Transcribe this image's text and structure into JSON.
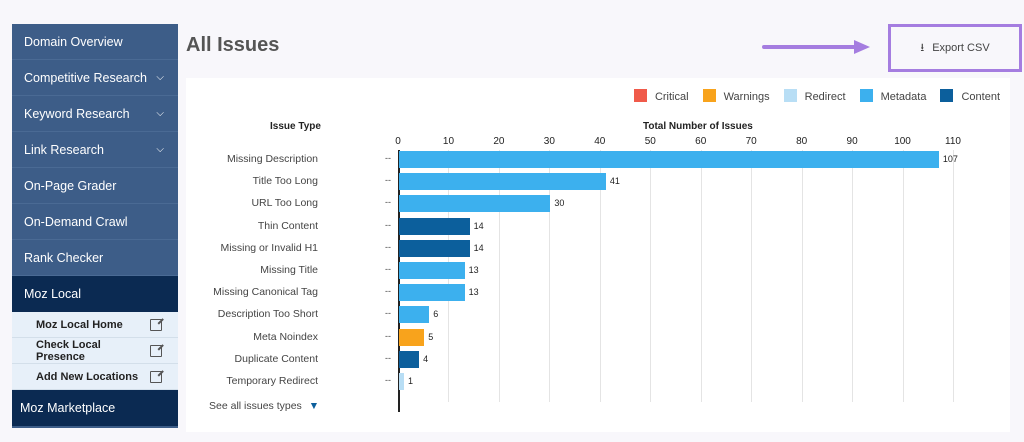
{
  "sidebar": {
    "items": [
      {
        "label": "Domain Overview",
        "chevron": false
      },
      {
        "label": "Competitive Research",
        "chevron": true
      },
      {
        "label": "Keyword Research",
        "chevron": true
      },
      {
        "label": "Link Research",
        "chevron": true
      },
      {
        "label": "On-Page Grader",
        "chevron": false
      },
      {
        "label": "On-Demand Crawl",
        "chevron": false
      },
      {
        "label": "Rank Checker",
        "chevron": false
      },
      {
        "label": "Moz Local",
        "chevron": false,
        "active": true
      }
    ],
    "subitems": [
      "Moz Local Home",
      "Check Local Presence",
      "Add New Locations"
    ],
    "marketplace": "Moz Marketplace"
  },
  "page": {
    "title": "All Issues",
    "export_label": "Export CSV",
    "see_all": "See all issues types"
  },
  "colors": {
    "Critical": "#f05a4a",
    "Warnings": "#f8a31c",
    "Redirect": "#b8def5",
    "Metadata": "#3cb0ee",
    "Content": "#0c5f9c",
    "highlight": "#a57de0"
  },
  "chart_data": {
    "type": "bar",
    "orientation": "horizontal",
    "category_header": "Issue Type",
    "xlabel": "Total Number of Issues",
    "xlim": [
      0,
      110
    ],
    "xticks": [
      0,
      10,
      20,
      30,
      40,
      50,
      60,
      70,
      80,
      90,
      100,
      110
    ],
    "grid": true,
    "legend": "top-right",
    "legend_entries": [
      "Critical",
      "Warnings",
      "Redirect",
      "Metadata",
      "Content"
    ],
    "categories": [
      "Missing Description",
      "Title Too Long",
      "URL Too Long",
      "Thin Content",
      "Missing or Invalid H1",
      "Missing Title",
      "Missing Canonical Tag",
      "Description Too Short",
      "Meta Noindex",
      "Duplicate Content",
      "Temporary Redirect"
    ],
    "values": [
      107,
      41,
      30,
      14,
      14,
      13,
      13,
      6,
      5,
      4,
      1
    ],
    "types": [
      "Metadata",
      "Metadata",
      "Metadata",
      "Content",
      "Content",
      "Metadata",
      "Metadata",
      "Metadata",
      "Warnings",
      "Content",
      "Redirect"
    ],
    "row_marker": "--"
  }
}
